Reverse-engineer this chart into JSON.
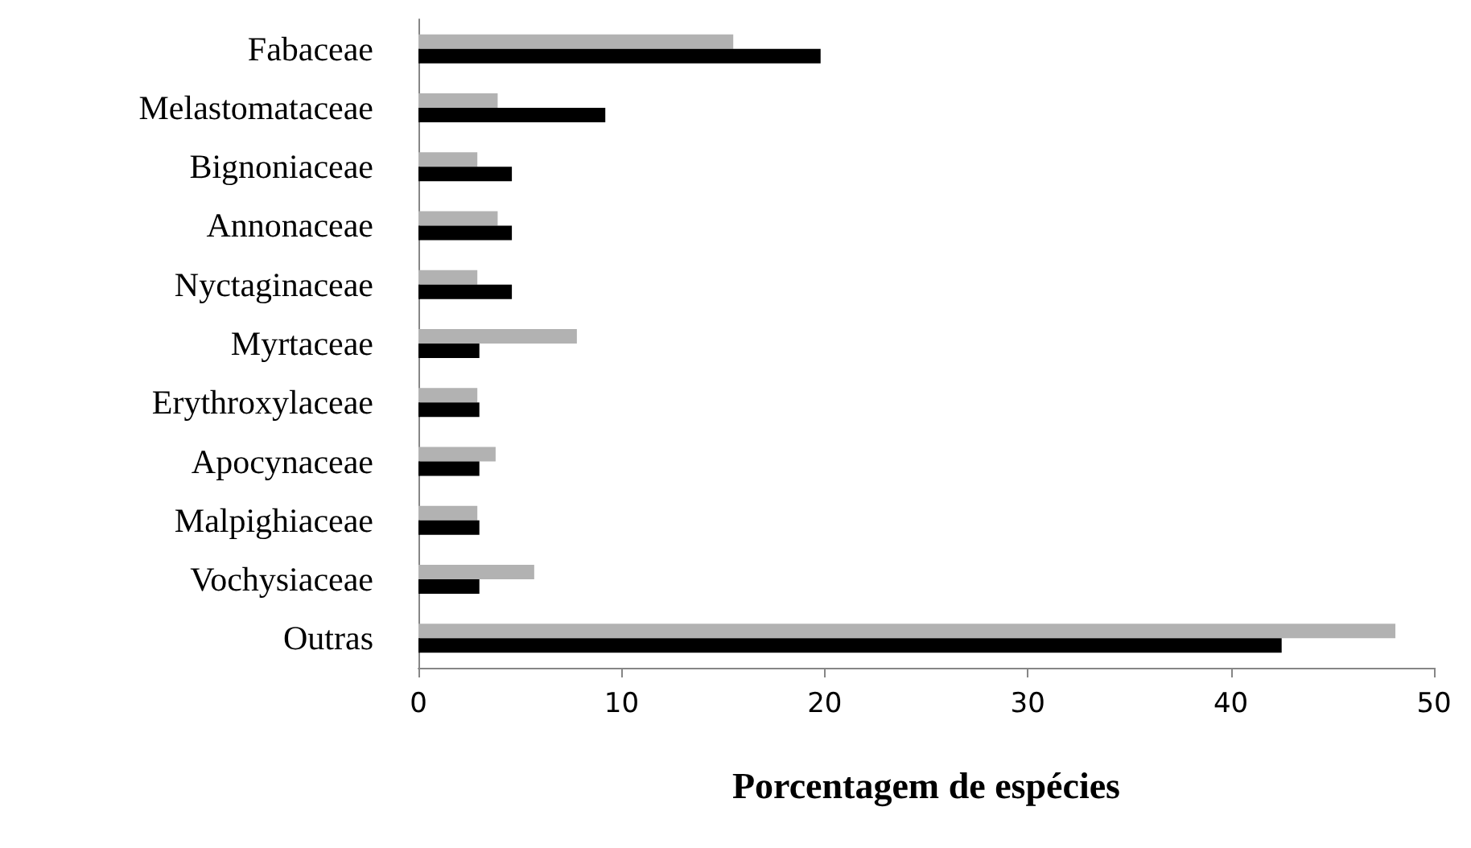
{
  "chart_data": {
    "type": "bar",
    "orientation": "horizontal",
    "xlabel": "Porcentagem de espécies",
    "categories": [
      "Fabaceae",
      "Melastomataceae",
      "Bignoniaceae",
      "Annonaceae",
      "Nyctaginaceae",
      "Myrtaceae",
      "Erythroxylaceae",
      "Apocynaceae",
      "Malpighiaceae",
      "Vochysiaceae",
      "Outras"
    ],
    "series": [
      {
        "color": "#b2b2b2",
        "values": [
          15.5,
          3.9,
          2.9,
          3.9,
          2.9,
          7.8,
          2.9,
          3.8,
          2.9,
          5.7,
          48.1
        ]
      },
      {
        "color": "#000000",
        "values": [
          19.8,
          9.2,
          4.6,
          4.6,
          4.6,
          3.0,
          3.0,
          3.0,
          3.0,
          3.0,
          42.5
        ]
      }
    ],
    "xlim": [
      0,
      50
    ],
    "xticks": [
      0,
      10,
      20,
      30,
      40,
      50
    ],
    "grid": false
  }
}
